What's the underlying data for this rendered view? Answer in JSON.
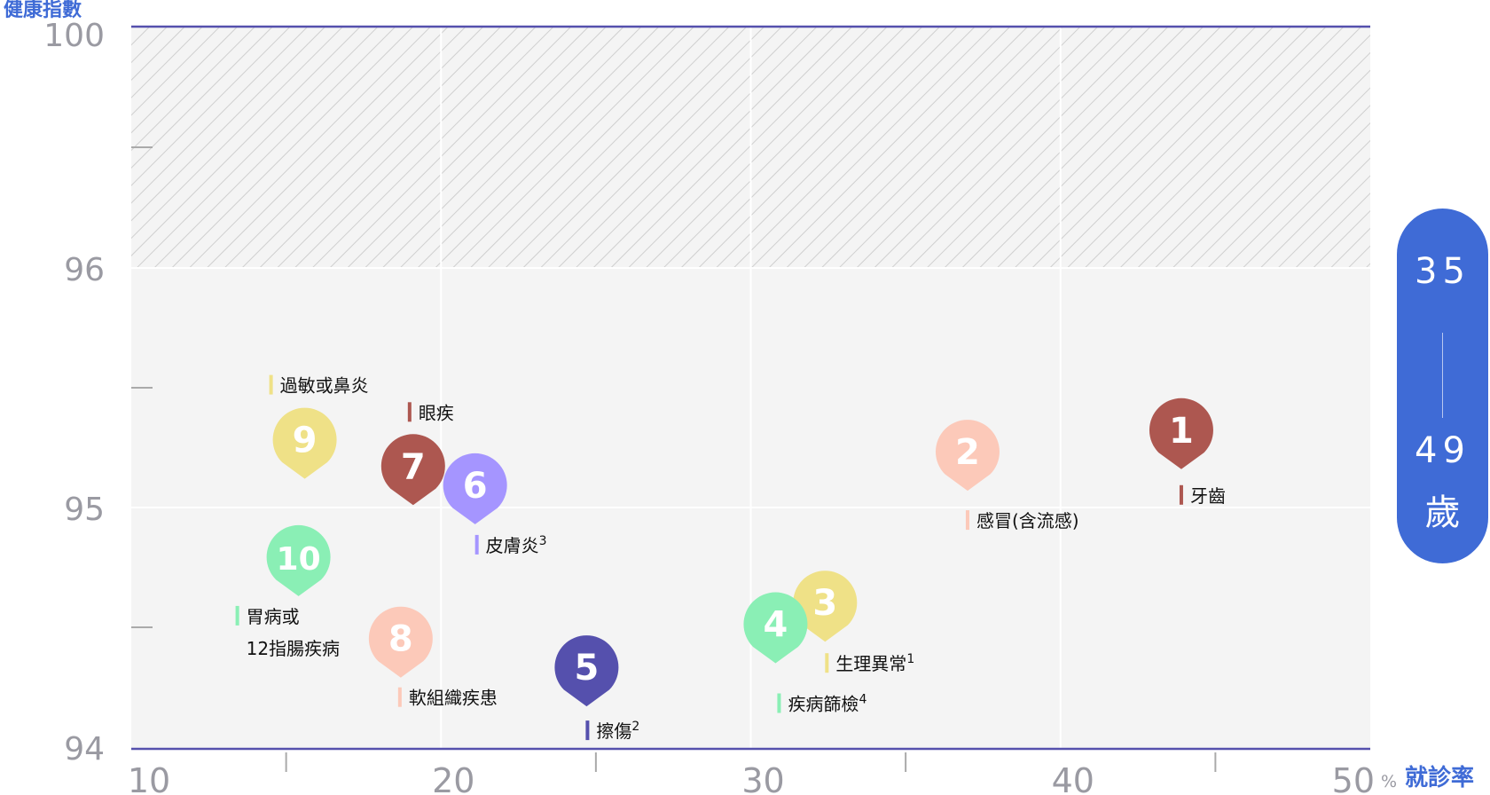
{
  "chart_data": {
    "type": "scatter",
    "ylabel": "健康指數",
    "xlabel": "就診率",
    "x_unit": "%",
    "xlim": [
      10,
      50
    ],
    "ylim": [
      94,
      100
    ],
    "x_ticks": [
      "10",
      "20",
      "30",
      "40",
      "50"
    ],
    "y_ticks": [
      "100",
      "96",
      "95",
      "94"
    ],
    "y_scale_note": "broken axis: 96–100 compressed, hatched",
    "grid": true,
    "age_group": {
      "from": "35",
      "to": "49",
      "unit": "歲"
    },
    "points": [
      {
        "rank": "1",
        "label": "牙齒",
        "note": "",
        "x": 43.9,
        "y": 95.16,
        "color": "#ad5750"
      },
      {
        "rank": "2",
        "label": "感冒(含流感)",
        "note": "",
        "x": 37.0,
        "y": 95.07,
        "color": "#fcc9b9"
      },
      {
        "rank": "3",
        "label": "生理異常",
        "note": "1",
        "x": 32.4,
        "y": 94.44,
        "color": "#efe187"
      },
      {
        "rank": "4",
        "label": "疾病篩檢",
        "note": "4",
        "x": 30.8,
        "y": 94.35,
        "color": "#8aefb5"
      },
      {
        "rank": "5",
        "label": "擦傷",
        "note": "2",
        "x": 24.7,
        "y": 94.17,
        "color": "#5550ad"
      },
      {
        "rank": "6",
        "label": "皮膚炎",
        "note": "3",
        "x": 21.1,
        "y": 94.93,
        "color": "#a595ff"
      },
      {
        "rank": "7",
        "label": "眼疾",
        "note": "",
        "x": 19.1,
        "y": 95.01,
        "color": "#ad5750"
      },
      {
        "rank": "8",
        "label": "軟組織疾患",
        "note": "",
        "x": 18.7,
        "y": 94.29,
        "color": "#fcc9b9"
      },
      {
        "rank": "9",
        "label": "過敏或鼻炎",
        "note": "",
        "x": 15.6,
        "y": 95.12,
        "color": "#efe187"
      },
      {
        "rank": "10",
        "label": "胃病或\n12指腸疾病",
        "note": "",
        "x": 15.4,
        "y": 94.63,
        "color": "#8aefb5"
      }
    ]
  }
}
